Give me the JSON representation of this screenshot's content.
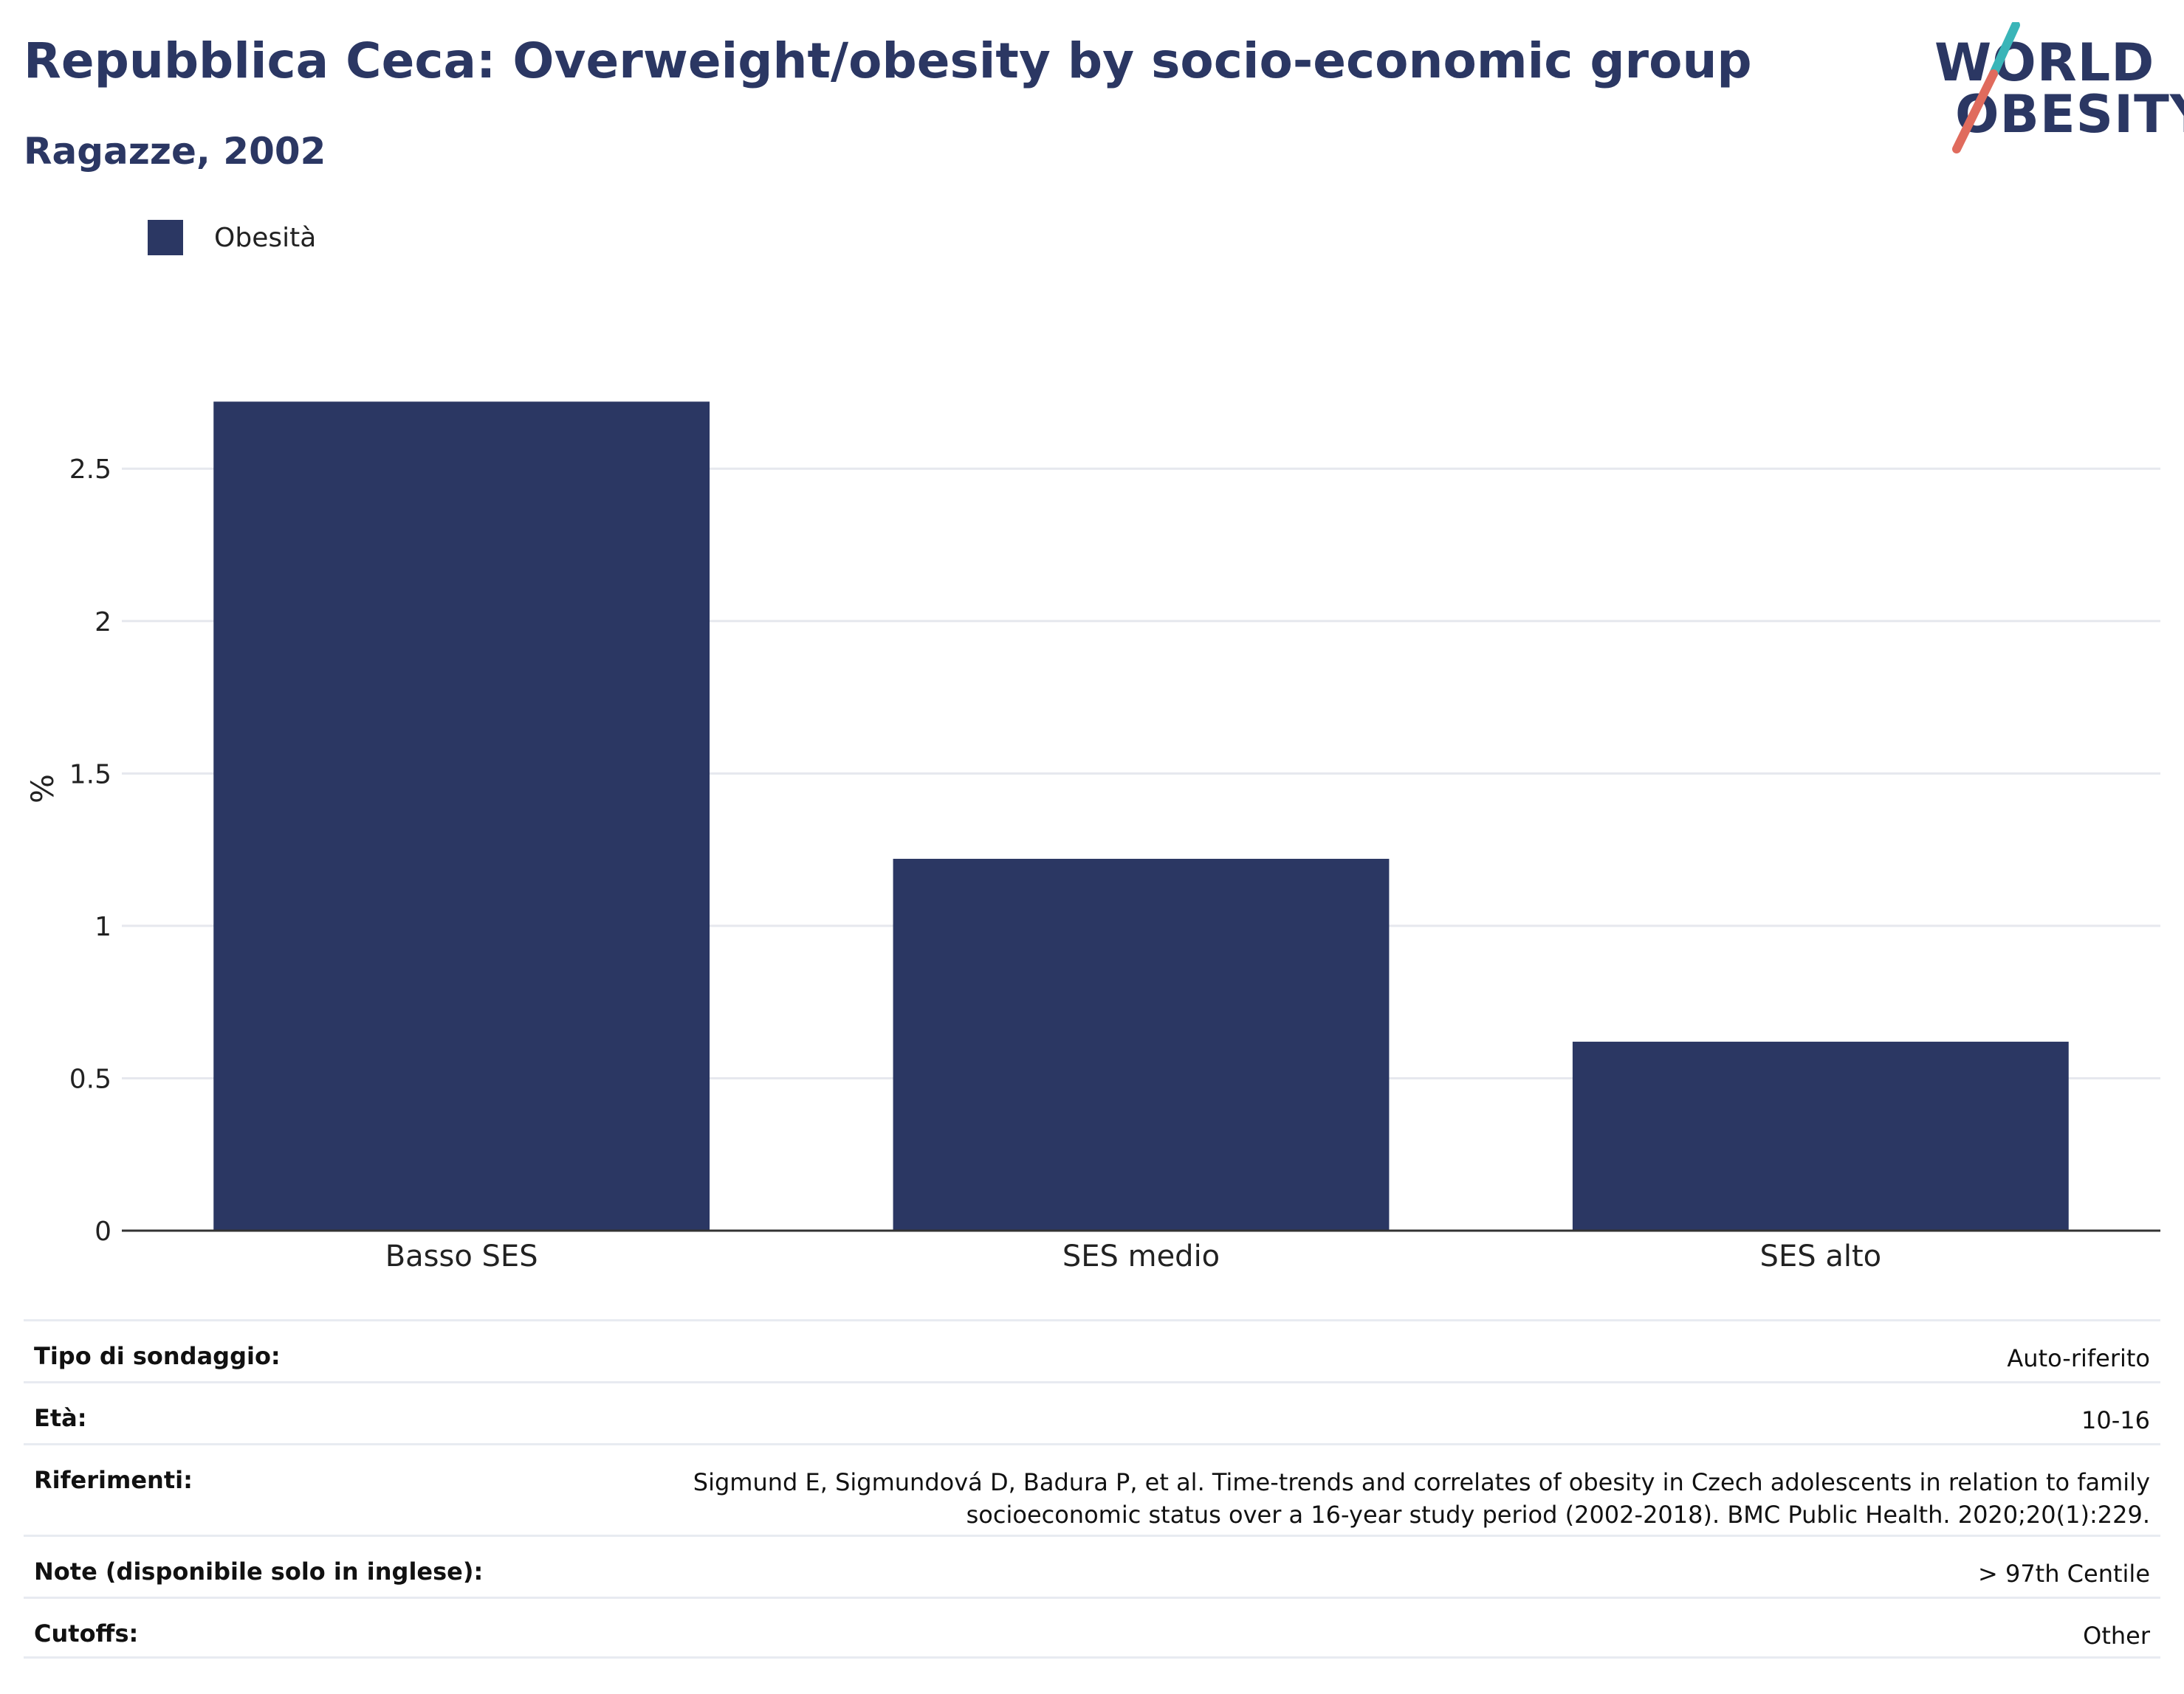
{
  "header": {
    "title": "Repubblica Ceca: Overweight/obesity by socio-economic group",
    "subtitle": "Ragazze, 2002"
  },
  "logo": {
    "line1": "WORLD",
    "line2": "OBESITY",
    "slash_colors": [
      "#3ab5b8",
      "#e06b5d"
    ]
  },
  "colors": {
    "bar": "#2b3763",
    "grid": "#e6e8ee",
    "axis": "#333333",
    "text": "#222222"
  },
  "chart_data": {
    "type": "bar",
    "categories": [
      "Basso SES",
      "SES medio",
      "SES alto"
    ],
    "series": [
      {
        "name": "Obesità",
        "values": [
          2.72,
          1.22,
          0.62
        ]
      }
    ],
    "ylabel": "%",
    "ylim": [
      0,
      2.9
    ],
    "yticks": [
      0,
      0.5,
      1,
      1.5,
      2,
      2.5
    ],
    "ytick_labels": [
      "0",
      "0.5",
      "1",
      "1.5",
      "2",
      "2.5"
    ],
    "grid": true,
    "legend": "top-left"
  },
  "info_table": [
    {
      "key": "Tipo di sondaggio:",
      "value": "Auto-riferito"
    },
    {
      "key": "Età:",
      "value": "10-16"
    },
    {
      "key": "Riferimenti:",
      "value": "Sigmund E, Sigmundová D, Badura P, et al. Time-trends and correlates of obesity in Czech adolescents in relation to family socioeconomic status over a 16-year study period (2002-2018). BMC Public Health. 2020;20(1):229."
    },
    {
      "key": "Note (disponibile solo in inglese):",
      "value": "> 97th Centile"
    },
    {
      "key": "Cutoffs:",
      "value": "Other"
    }
  ]
}
